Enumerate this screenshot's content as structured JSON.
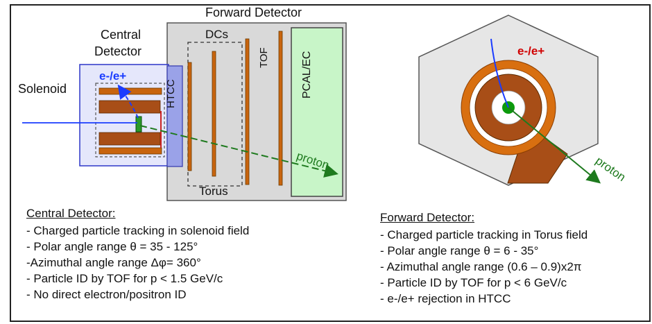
{
  "labels": {
    "forward_detector": "Forward Detector",
    "central_detector_line1": "Central",
    "central_detector_line2": "Detector",
    "solenoid": "Solenoid",
    "dcs": "DCs",
    "htcc": "HTCC",
    "tof": "TOF",
    "pcal_ec": "PCAL/EC",
    "torus": "Torus",
    "proton_side": "proton",
    "proton_front": "proton",
    "electron_positron_side": "e-/e+",
    "electron_positron_front": "e-/e+"
  },
  "colors": {
    "orange": "#c8640e",
    "brown": "#a84e17",
    "grey_box": "#d9d9d9",
    "blue": "#1a3cff",
    "green": "#1e7a1e",
    "pcal_fill": "#c8f5c8"
  },
  "central_info": {
    "heading": "Central Detector:",
    "items": [
      "- Charged particle tracking in solenoid field",
      "- Polar angle range θ = 35 - 125°",
      "-Azimuthal angle range Δφ= 360°",
      "- Particle ID by TOF for p < 1.5 GeV/c",
      "- No direct electron/positron ID"
    ]
  },
  "forward_info": {
    "heading": "Forward Detector:",
    "items": [
      "- Charged particle tracking in Torus field",
      "- Polar angle range θ = 6 - 35°",
      "- Azimuthal angle range (0.6 – 0.9)x2π",
      "- Particle ID by TOF for p < 6 GeV/c",
      "- e-/e+ rejection in HTCC"
    ]
  }
}
